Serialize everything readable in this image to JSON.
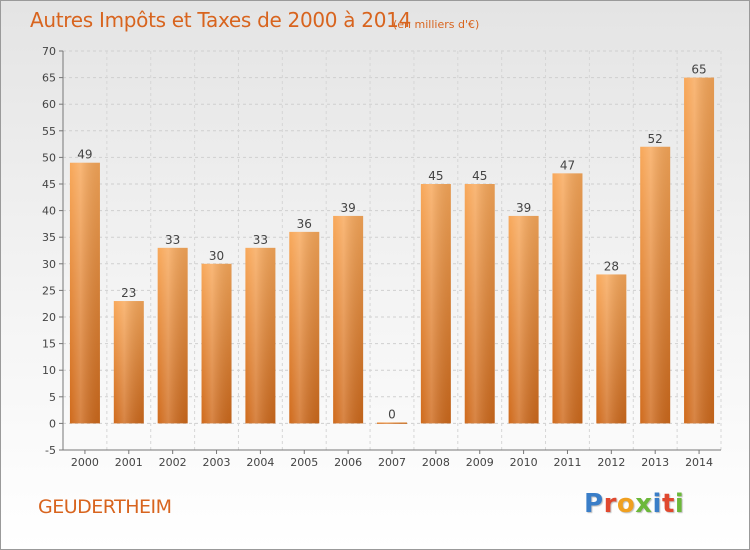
{
  "header": {
    "title": "Autres Impôts et Taxes de 2000 à 2014",
    "unit_note": "(en milliers d'€)"
  },
  "footer": {
    "commune": "GEUDERTHEIM",
    "logo_letters": [
      "P",
      "r",
      "o",
      "x",
      "i",
      "t",
      "i"
    ],
    "logo_colors": [
      "#3a7ec8",
      "#e0482e",
      "#f0a020",
      "#6cb83a",
      "#3a7ec8",
      "#e0482e",
      "#6cb83a"
    ]
  },
  "colors": {
    "accent": "#d8641e",
    "bar_top": "#f8a85a",
    "bar_bottom": "#cf6a1c"
  },
  "chart_data": {
    "type": "bar",
    "categories": [
      "2000",
      "2001",
      "2002",
      "2003",
      "2004",
      "2005",
      "2006",
      "2007",
      "2008",
      "2009",
      "2010",
      "2011",
      "2012",
      "2013",
      "2014"
    ],
    "values": [
      49,
      23,
      33,
      30,
      33,
      36,
      39,
      0,
      45,
      45,
      39,
      47,
      28,
      52,
      65
    ],
    "data_labels": [
      "49",
      "23",
      "33",
      "30",
      "33",
      "36",
      "39",
      "0",
      "45",
      "45",
      "39",
      "47",
      "28",
      "52",
      "65"
    ],
    "y_ticks": [
      -5,
      0,
      5,
      10,
      15,
      20,
      25,
      30,
      35,
      40,
      45,
      50,
      55,
      60,
      65,
      70
    ],
    "ylim": [
      -5,
      70
    ],
    "grid": true,
    "legend": "none"
  }
}
